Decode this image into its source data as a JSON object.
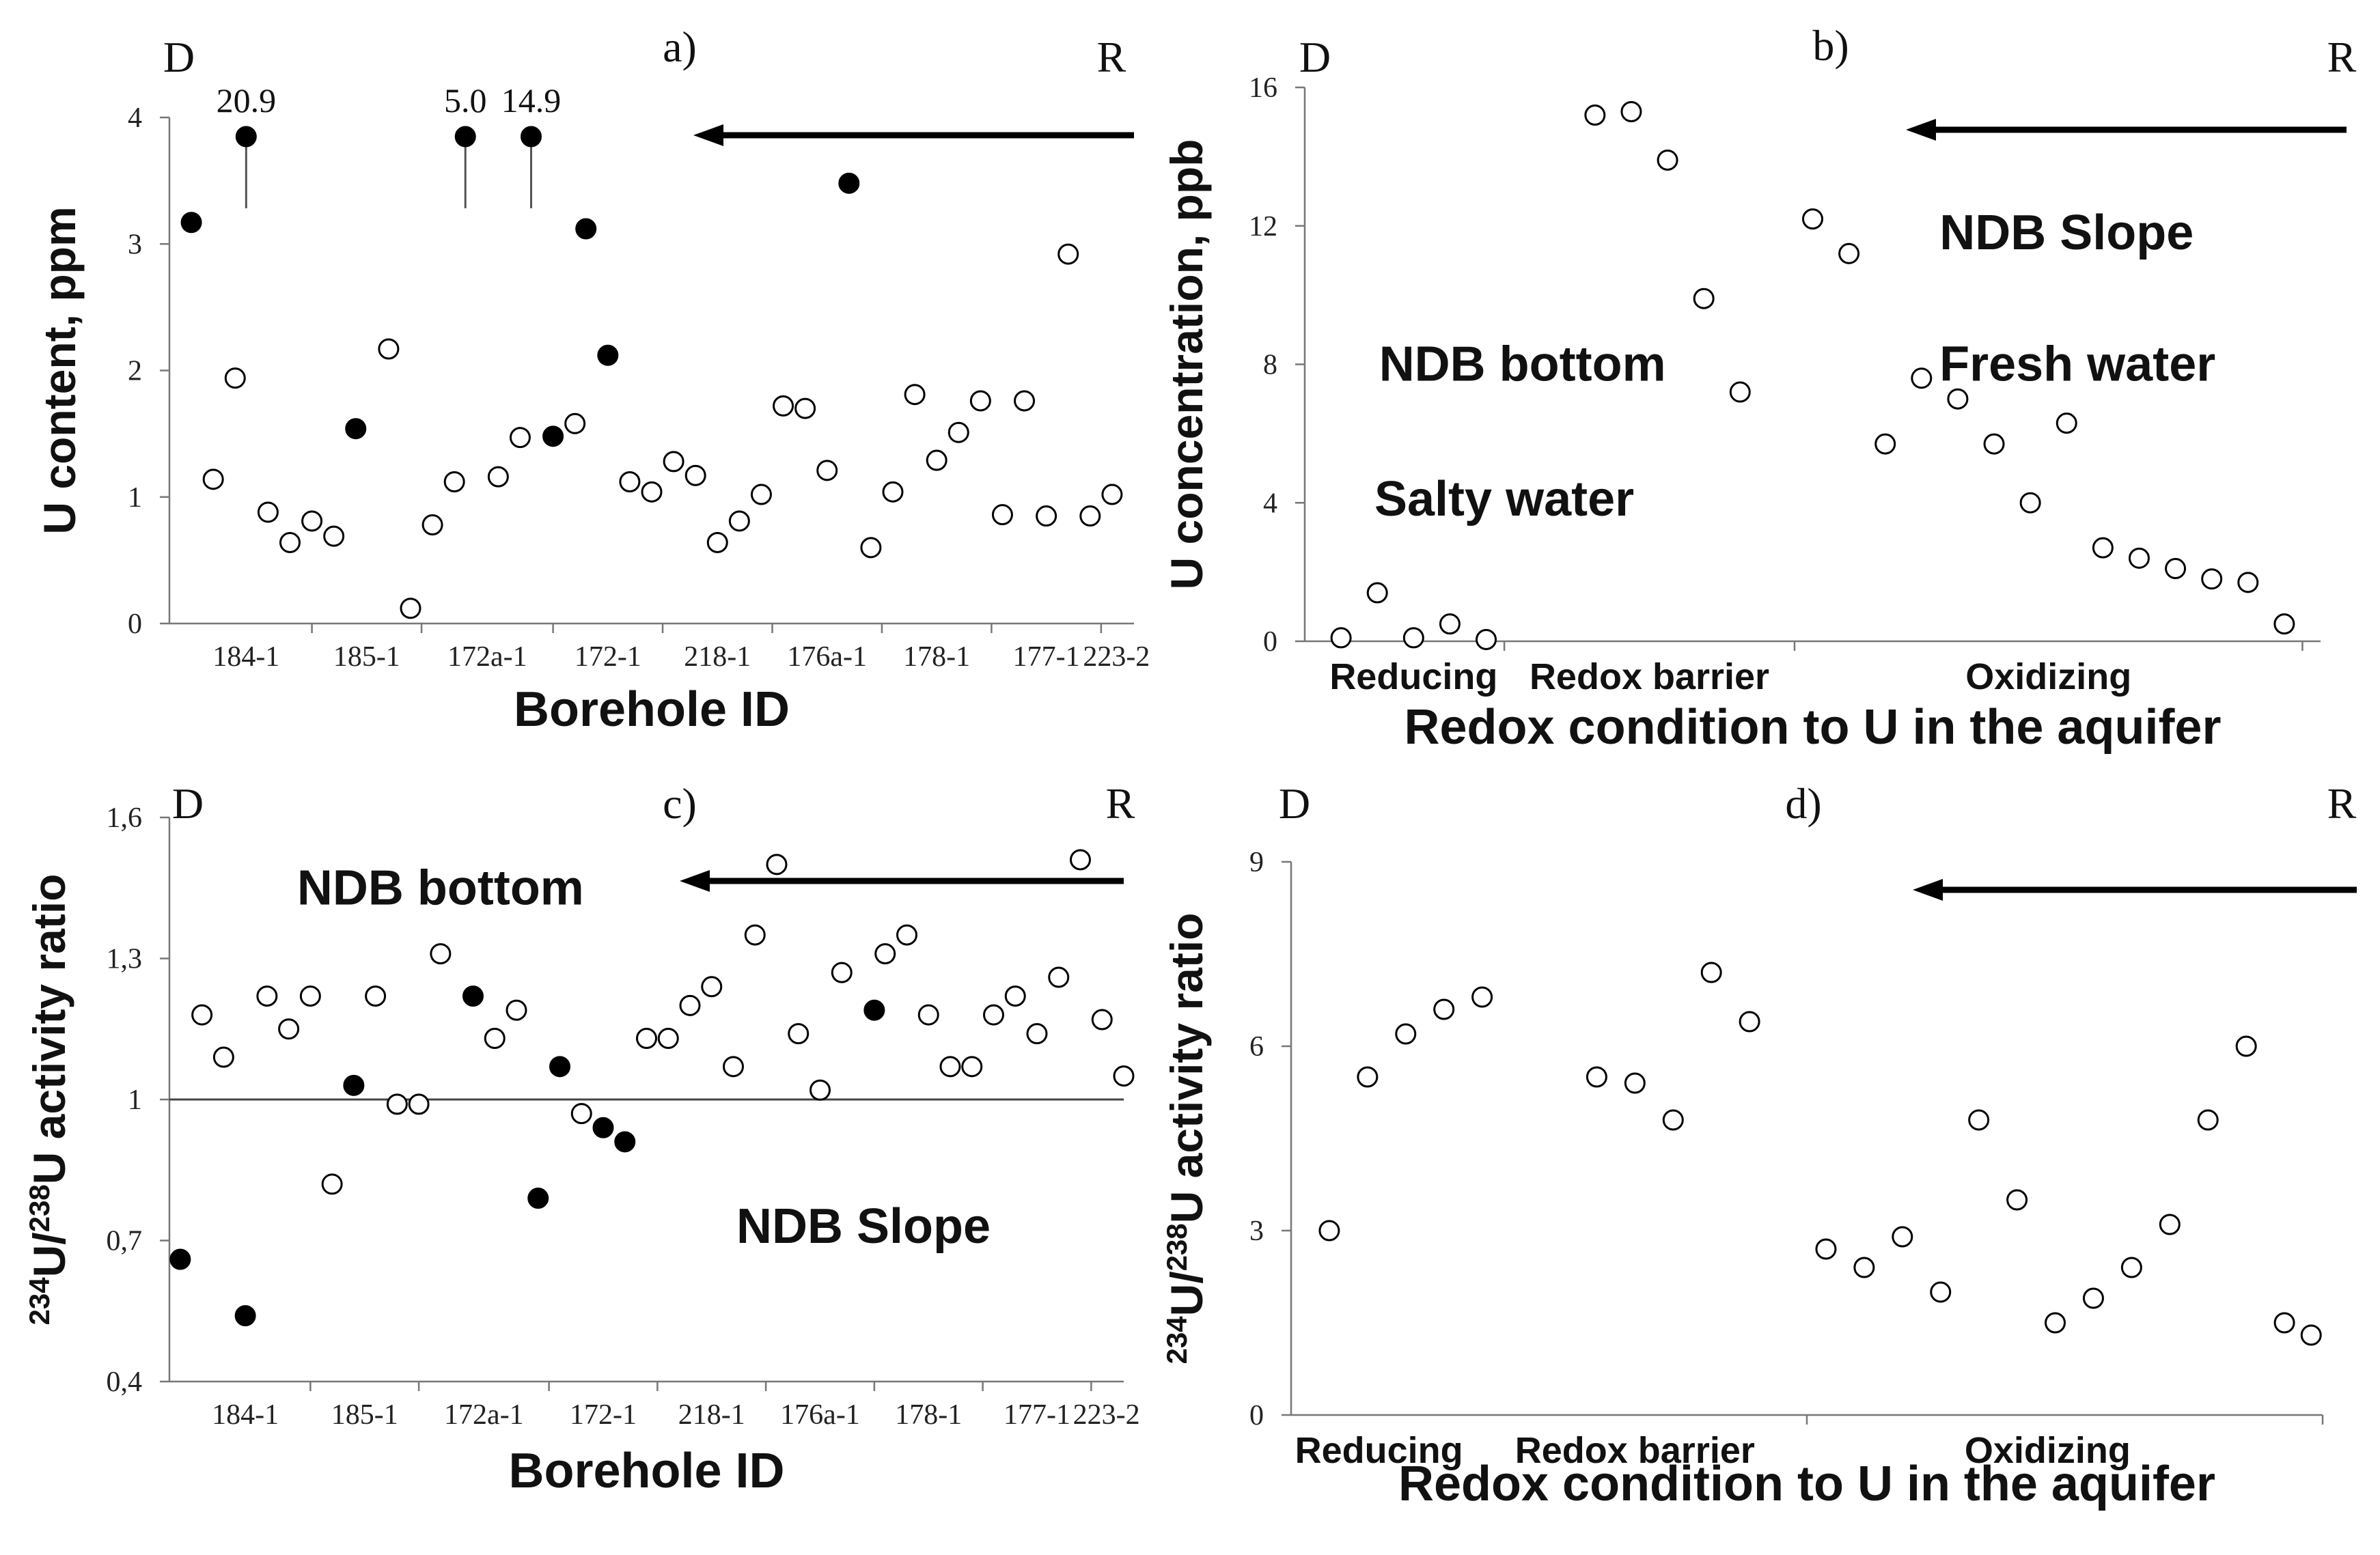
{
  "chart_data": [
    {
      "id": "a",
      "type": "scatter",
      "panel_label": "a)",
      "corner_left": "D",
      "corner_right": "R",
      "ylabel": "U content, ppm",
      "xlabel": "Borehole ID",
      "ylim": [
        0,
        4
      ],
      "yticks": [
        "0",
        "1",
        "2",
        "3",
        "4"
      ],
      "yticks_v": [
        0,
        1,
        2,
        3,
        4
      ],
      "xlim": [
        0,
        44
      ],
      "xticks": [
        6.5,
        11.5,
        17.5,
        22.5,
        27.5,
        32.5,
        37.5,
        42.5
      ],
      "categories": [
        {
          "label": "184-1",
          "x": 3.5
        },
        {
          "label": "185-1",
          "x": 9
        },
        {
          "label": "172a-1",
          "x": 14.5
        },
        {
          "label": "172-1",
          "x": 20
        },
        {
          "label": "218-1",
          "x": 25
        },
        {
          "label": "176a-1",
          "x": 30
        },
        {
          "label": "178-1",
          "x": 35
        },
        {
          "label": "177-1",
          "x": 40
        },
        {
          "label": "223-2",
          "x": 43.2
        }
      ],
      "series": [
        {
          "name": "filled",
          "filled": true,
          "points": [
            [
              1,
              3.17
            ],
            [
              8.5,
              1.54
            ],
            [
              17.5,
              1.48
            ],
            [
              19,
              3.12
            ],
            [
              20,
              2.12
            ],
            [
              31,
              3.48
            ]
          ]
        },
        {
          "name": "open",
          "filled": false,
          "points": [
            [
              2,
              1.14
            ],
            [
              3,
              1.94
            ],
            [
              4.5,
              0.88
            ],
            [
              5.5,
              0.64
            ],
            [
              6.5,
              0.81
            ],
            [
              7.5,
              0.69
            ],
            [
              10,
              2.17
            ],
            [
              11,
              0.12
            ],
            [
              12,
              0.78
            ],
            [
              13,
              1.12
            ],
            [
              15,
              1.16
            ],
            [
              16,
              1.47
            ],
            [
              18.5,
              1.58
            ],
            [
              21,
              1.12
            ],
            [
              22,
              1.04
            ],
            [
              23,
              1.28
            ],
            [
              24,
              1.17
            ],
            [
              25,
              0.64
            ],
            [
              26,
              0.81
            ],
            [
              27,
              1.02
            ],
            [
              28,
              1.72
            ],
            [
              29,
              1.7
            ],
            [
              30,
              1.21
            ],
            [
              32,
              0.6
            ],
            [
              33,
              1.04
            ],
            [
              34,
              1.81
            ],
            [
              35,
              1.29
            ],
            [
              36,
              1.51
            ],
            [
              37,
              1.76
            ],
            [
              38,
              0.86
            ],
            [
              39,
              1.76
            ],
            [
              40,
              0.85
            ],
            [
              41,
              2.92
            ],
            [
              42,
              0.85
            ],
            [
              43,
              1.02
            ]
          ]
        }
      ],
      "offscale_points": [
        {
          "x": 3.5,
          "value": "20.9"
        },
        {
          "x": 13.5,
          "value": "5.0"
        },
        {
          "x": 16.5,
          "value": "14.9"
        }
      ],
      "annotations": [],
      "reference_line": null,
      "bottom_labels": [],
      "xlabel_bottom_gap": 150
    },
    {
      "id": "b",
      "type": "scatter",
      "panel_label": "b)",
      "corner_left": "D",
      "corner_right": "R",
      "ylabel": "U concentration, ppb",
      "xlabel": "Redox condition to U in the aquifer",
      "ylim": [
        0,
        16
      ],
      "yticks": [
        "0",
        "4",
        "8",
        "12",
        "16"
      ],
      "yticks_v": [
        0,
        4,
        8,
        12,
        16
      ],
      "xlim": [
        0,
        28
      ],
      "xticks": [
        5.5,
        13.5,
        27.5
      ],
      "categories": [],
      "series": [
        {
          "name": "open",
          "filled": false,
          "points": [
            [
              1,
              0.1
            ],
            [
              2,
              1.4
            ],
            [
              3,
              0.1
            ],
            [
              4,
              0.5
            ],
            [
              5,
              0.05
            ],
            [
              8,
              15.2
            ],
            [
              9,
              15.3
            ],
            [
              10,
              13.9
            ],
            [
              11,
              9.9
            ],
            [
              12,
              7.2
            ],
            [
              14,
              12.2
            ],
            [
              15,
              11.2
            ],
            [
              16,
              5.7
            ],
            [
              17,
              7.6
            ],
            [
              18,
              7.0
            ],
            [
              19,
              5.7
            ],
            [
              20,
              4.0
            ],
            [
              21,
              6.3
            ],
            [
              22,
              2.7
            ],
            [
              23,
              2.4
            ],
            [
              24,
              2.1
            ],
            [
              25,
              1.8
            ],
            [
              26,
              1.7
            ],
            [
              27,
              0.5
            ]
          ]
        }
      ],
      "offscale_points": [],
      "annotations": [
        {
          "text": "NDB Slope",
          "x": 21,
          "y": 11.8
        },
        {
          "text": "NDB bottom",
          "x": 6,
          "y": 8.0
        },
        {
          "text": "Fresh water",
          "x": 21.3,
          "y": 8.0
        },
        {
          "text": "Salty water",
          "x": 5.5,
          "y": 4.1
        }
      ],
      "reference_line": null,
      "bottom_labels": [
        {
          "text": "Reducing",
          "x": 3
        },
        {
          "text": "Redox barrier",
          "x": 9.5
        },
        {
          "text": "Oxidizing",
          "x": 20.5
        }
      ],
      "xlabel_bottom_gap": 150
    },
    {
      "id": "c",
      "type": "scatter",
      "panel_label": "c)",
      "corner_left": "D",
      "corner_right": "R",
      "ylabel": "234U/238U activity ratio",
      "ylabel_parts": {
        "sup1": "234",
        "t1": "U/",
        "sup2": "238",
        "t2": "U activity ratio"
      },
      "xlabel": "Borehole ID",
      "ylim": [
        0.4,
        1.6
      ],
      "yticks": [
        "0,4",
        "0,7",
        "1",
        "1,3",
        "1,6"
      ],
      "yticks_v": [
        0.4,
        0.7,
        1.0,
        1.3,
        1.6
      ],
      "xlim": [
        0,
        44
      ],
      "xticks": [
        6.5,
        11.5,
        17.5,
        22.5,
        27.5,
        32.5,
        37.5,
        42.5
      ],
      "categories": [
        {
          "label": "184-1",
          "x": 3.5
        },
        {
          "label": "185-1",
          "x": 9
        },
        {
          "label": "172a-1",
          "x": 14.5
        },
        {
          "label": "172-1",
          "x": 20
        },
        {
          "label": "218-1",
          "x": 25
        },
        {
          "label": "176a-1",
          "x": 30
        },
        {
          "label": "178-1",
          "x": 35
        },
        {
          "label": "177-1",
          "x": 40
        },
        {
          "label": "223-2",
          "x": 43.2
        }
      ],
      "series": [
        {
          "name": "filled",
          "filled": true,
          "points": [
            [
              0.5,
              0.66
            ],
            [
              3.5,
              0.54
            ],
            [
              8.5,
              1.03
            ],
            [
              14,
              1.22
            ],
            [
              17,
              0.79
            ],
            [
              18,
              1.07
            ],
            [
              20,
              0.94
            ],
            [
              21,
              0.91
            ],
            [
              32.5,
              1.19
            ]
          ]
        },
        {
          "name": "open",
          "filled": false,
          "points": [
            [
              1.5,
              1.18
            ],
            [
              2.5,
              1.09
            ],
            [
              4.5,
              1.22
            ],
            [
              5.5,
              1.15
            ],
            [
              6.5,
              1.22
            ],
            [
              7.5,
              0.82
            ],
            [
              9.5,
              1.22
            ],
            [
              10.5,
              0.99
            ],
            [
              11.5,
              0.99
            ],
            [
              12.5,
              1.31
            ],
            [
              15,
              1.13
            ],
            [
              16,
              1.19
            ],
            [
              19,
              0.97
            ],
            [
              22,
              1.13
            ],
            [
              23,
              1.13
            ],
            [
              24,
              1.2
            ],
            [
              25,
              1.24
            ],
            [
              26,
              1.07
            ],
            [
              27,
              1.35
            ],
            [
              28,
              1.5
            ],
            [
              29,
              1.14
            ],
            [
              30,
              1.02
            ],
            [
              31,
              1.27
            ],
            [
              33,
              1.31
            ],
            [
              34,
              1.35
            ],
            [
              35,
              1.18
            ],
            [
              36,
              1.07
            ],
            [
              37,
              1.07
            ],
            [
              38,
              1.18
            ],
            [
              39,
              1.22
            ],
            [
              40,
              1.14
            ],
            [
              41,
              1.26
            ],
            [
              42,
              1.51
            ],
            [
              43,
              1.17
            ],
            [
              44,
              1.05
            ]
          ]
        }
      ],
      "offscale_points": [],
      "annotations": [
        {
          "text": "NDB bottom",
          "x": 12.5,
          "y": 1.45
        },
        {
          "text": "NDB Slope",
          "x": 32,
          "y": 0.73
        }
      ],
      "reference_line": {
        "y": 1.0
      },
      "bottom_labels": [],
      "xlabel_bottom_gap": 155
    },
    {
      "id": "d",
      "type": "scatter",
      "panel_label": "d)",
      "corner_left": "D",
      "corner_right": "R",
      "ylabel": "234U/238U activity ratio",
      "ylabel_parts": {
        "sup1": "234",
        "t1": "U/",
        "sup2": "238",
        "t2": "U activity ratio"
      },
      "xlabel": "Redox condition to U in the aquifer",
      "ylim": [
        0,
        9
      ],
      "yticks": [
        "0",
        "3",
        "6",
        "9"
      ],
      "yticks_v": [
        0,
        3,
        6,
        9
      ],
      "xlim": [
        0,
        27
      ],
      "xticks": [
        13.5,
        27
      ],
      "categories": [],
      "series": [
        {
          "name": "open",
          "filled": false,
          "points": [
            [
              1,
              3.0
            ],
            [
              2,
              5.5
            ],
            [
              3,
              6.2
            ],
            [
              4,
              6.6
            ],
            [
              5,
              6.8
            ],
            [
              8,
              5.5
            ],
            [
              9,
              5.4
            ],
            [
              10,
              4.8
            ],
            [
              11,
              7.2
            ],
            [
              12,
              6.4
            ],
            [
              14,
              2.7
            ],
            [
              15,
              2.4
            ],
            [
              16,
              2.9
            ],
            [
              17,
              2.0
            ],
            [
              18,
              4.8
            ],
            [
              19,
              3.5
            ],
            [
              20,
              1.5
            ],
            [
              21,
              1.9
            ],
            [
              22,
              2.4
            ],
            [
              23,
              3.1
            ],
            [
              24,
              4.8
            ],
            [
              25,
              6.0
            ],
            [
              26,
              1.5
            ],
            [
              26.7,
              1.3
            ]
          ]
        }
      ],
      "offscale_points": [],
      "annotations": [],
      "reference_line": null,
      "bottom_labels": [
        {
          "text": "Reducing",
          "x": 2.3
        },
        {
          "text": "Redox barrier",
          "x": 9
        },
        {
          "text": "Oxidizing",
          "x": 19.8
        }
      ],
      "xlabel_bottom_gap": 125
    }
  ]
}
